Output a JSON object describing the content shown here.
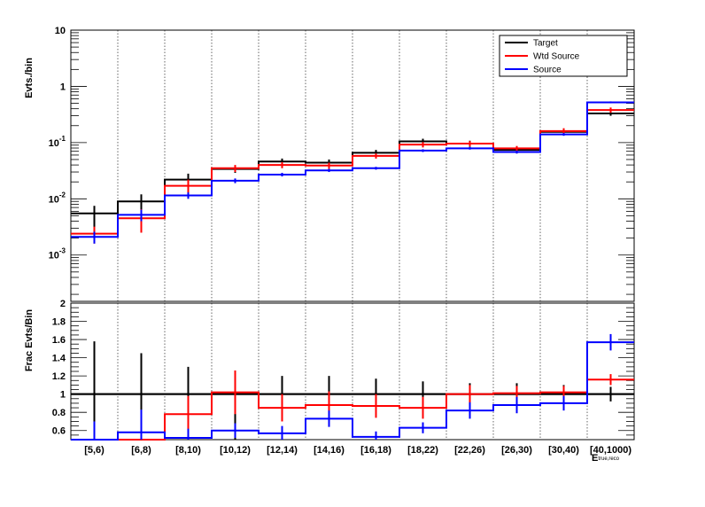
{
  "chart_data": [
    {
      "type": "histogram",
      "panel": "top",
      "ylabel": "Evts./bin",
      "yscale": "log",
      "ylim": [
        0.00015,
        10
      ],
      "y_major_ticks": [
        {
          "value": 0.001,
          "base": "10",
          "exp": "-3"
        },
        {
          "value": 0.01,
          "base": "10",
          "exp": "-2"
        },
        {
          "value": 0.1,
          "base": "10",
          "exp": "-1"
        },
        {
          "value": 1,
          "base": "1",
          "exp": ""
        },
        {
          "value": 10,
          "base": "10",
          "exp": ""
        }
      ],
      "grid_x": true,
      "legend_position": "top-right",
      "series": [
        {
          "name": "Target",
          "color": "#000000",
          "values": [
            0.0055,
            0.009,
            0.022,
            0.034,
            0.046,
            0.044,
            0.066,
            0.105,
            0.096,
            0.074,
            0.155,
            0.33
          ],
          "err_low": [
            0.0035,
            0.0045,
            0.006,
            0.005,
            0.006,
            0.006,
            0.008,
            0.012,
            0.012,
            0.01,
            0.02,
            0.03
          ],
          "err_high": [
            0.002,
            0.003,
            0.006,
            0.005,
            0.006,
            0.006,
            0.008,
            0.012,
            0.012,
            0.01,
            0.02,
            0.03
          ]
        },
        {
          "name": "Wtd Source",
          "color": "#ff0000",
          "values": [
            0.0024,
            0.0045,
            0.017,
            0.035,
            0.04,
            0.039,
            0.058,
            0.092,
            0.096,
            0.079,
            0.16,
            0.38
          ],
          "err_low": [
            0.0008,
            0.002,
            0.005,
            0.005,
            0.005,
            0.005,
            0.006,
            0.01,
            0.01,
            0.008,
            0.02,
            0.04
          ],
          "err_high": [
            0.0008,
            0.002,
            0.005,
            0.005,
            0.005,
            0.005,
            0.006,
            0.01,
            0.01,
            0.008,
            0.02,
            0.04
          ]
        },
        {
          "name": "Source",
          "color": "#0000ff",
          "values": [
            0.0021,
            0.0052,
            0.0115,
            0.021,
            0.027,
            0.032,
            0.035,
            0.072,
            0.079,
            0.068,
            0.14,
            0.52
          ],
          "err_low": [
            0.0005,
            0.0012,
            0.0015,
            0.002,
            0.002,
            0.002,
            0.002,
            0.004,
            0.004,
            0.004,
            0.008,
            0.02
          ],
          "err_high": [
            0.0005,
            0.0012,
            0.0015,
            0.002,
            0.002,
            0.002,
            0.002,
            0.004,
            0.004,
            0.004,
            0.008,
            0.02
          ]
        }
      ]
    },
    {
      "type": "histogram",
      "panel": "bottom",
      "ylabel": "Frac Evts/Bin",
      "xlabel": "E",
      "xlabel_sub": "true,reco",
      "categories": [
        "[5,6)",
        "[6,8)",
        "[8,10)",
        "[10,12)",
        "[12,14)",
        "[14,16)",
        "[16,18)",
        "[18,22)",
        "[22,26)",
        "[26,30)",
        "[30,40)",
        "[40,1000)"
      ],
      "ylim": [
        0.5,
        2
      ],
      "y_ticks": [
        "0.6",
        "0.8",
        "1",
        "1.2",
        "1.4",
        "1.6",
        "1.8",
        "2"
      ],
      "grid_x": true,
      "series": [
        {
          "name": "Target",
          "color": "#000000",
          "values": [
            1,
            1,
            1,
            1,
            1,
            1,
            1,
            1,
            1,
            1,
            1,
            1
          ],
          "err_low": [
            0.5,
            0.5,
            0.5,
            0.5,
            0.2,
            0.2,
            0.17,
            0.14,
            0.12,
            0.12,
            0.1,
            0.08
          ],
          "err_high": [
            0.58,
            0.45,
            0.3,
            0.25,
            0.2,
            0.2,
            0.17,
            0.14,
            0.12,
            0.12,
            0.1,
            0.08
          ]
        },
        {
          "name": "Wtd Source",
          "color": "#ff0000",
          "values": [
            0.5,
            0.5,
            0.78,
            1.02,
            0.85,
            0.88,
            0.87,
            0.85,
            1,
            1.01,
            1.02,
            1.16
          ],
          "err_low": [
            0.2,
            0.2,
            0.2,
            0.24,
            0.15,
            0.15,
            0.13,
            0.12,
            0.1,
            0.08,
            0.07,
            0.06
          ],
          "err_high": [
            0.2,
            0.2,
            0.2,
            0.24,
            0.15,
            0.15,
            0.13,
            0.12,
            0.1,
            0.08,
            0.07,
            0.06
          ]
        },
        {
          "name": "Source",
          "color": "#0000ff",
          "values": [
            0.5,
            0.58,
            0.52,
            0.6,
            0.57,
            0.73,
            0.53,
            0.63,
            0.82,
            0.88,
            0.9,
            1.57
          ],
          "err_low": [
            0.2,
            0.25,
            0.1,
            0.08,
            0.08,
            0.09,
            0.06,
            0.06,
            0.09,
            0.09,
            0.08,
            0.09
          ],
          "err_high": [
            0.2,
            0.25,
            0.1,
            0.08,
            0.08,
            0.09,
            0.06,
            0.06,
            0.09,
            0.09,
            0.08,
            0.09
          ]
        }
      ]
    }
  ]
}
